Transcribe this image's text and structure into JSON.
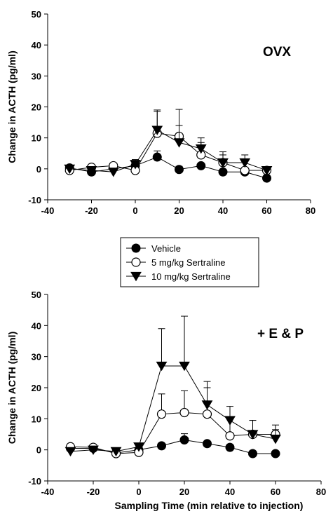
{
  "chart_data": [
    {
      "type": "line",
      "title": "OVX",
      "xlabel": "",
      "ylabel": "Change in ACTH (pg/ml)",
      "xlim": [
        -40,
        80
      ],
      "ylim": [
        -10,
        50
      ],
      "xticks": [
        "-40",
        "-20",
        "0",
        "20",
        "40",
        "60",
        "80"
      ],
      "yticks": [
        "-10",
        "0",
        "10",
        "20",
        "30",
        "40",
        "50"
      ],
      "series": [
        {
          "name": "Vehicle",
          "marker": "filled-circle",
          "x": [
            -30,
            -20,
            0,
            10,
            20,
            30,
            40,
            50,
            60
          ],
          "y": [
            0.3,
            -1,
            1,
            3.8,
            -0.2,
            1,
            -1,
            -1,
            -3
          ],
          "yerr": [
            0.5,
            0.5,
            1,
            2,
            1,
            0.5,
            0.5,
            0.5,
            0.3
          ]
        },
        {
          "name": "5 mg/kg Sertraline",
          "marker": "open-circle",
          "x": [
            -30,
            -20,
            -10,
            0,
            10,
            20,
            30,
            40,
            50,
            60
          ],
          "y": [
            -0.5,
            0.5,
            1,
            -0.5,
            11.5,
            10.5,
            4.5,
            2,
            -0.5,
            -0.5
          ],
          "yerr": [
            0.5,
            0.5,
            0.5,
            1,
            7,
            8.7,
            4,
            3.5,
            3,
            1
          ]
        },
        {
          "name": "10 mg/kg Sertraline",
          "marker": "filled-triangle",
          "x": [
            -30,
            -20,
            -10,
            0,
            10,
            20,
            30,
            40,
            50,
            60
          ],
          "y": [
            0,
            -0.5,
            -1,
            1.5,
            12.5,
            8.5,
            6.5,
            2,
            2,
            -0.5
          ],
          "yerr": [
            0.5,
            0.5,
            0.5,
            1.5,
            6.5,
            5.5,
            3.5,
            2.5,
            2.5,
            1
          ]
        }
      ]
    },
    {
      "type": "line",
      "title": "+ E & P",
      "xlabel": "Sampling Time (min relative to injection)",
      "ylabel": "Change in ACTH (pg/ml)",
      "xlim": [
        -40,
        80
      ],
      "ylim": [
        -10,
        50
      ],
      "xticks": [
        "-40",
        "-20",
        "0",
        "20",
        "40",
        "60",
        "80"
      ],
      "yticks": [
        "-10",
        "0",
        "10",
        "20",
        "30",
        "40",
        "50"
      ],
      "series": [
        {
          "name": "Vehicle",
          "marker": "filled-circle",
          "x": [
            -30,
            -20,
            -10,
            0,
            10,
            20,
            30,
            40,
            50,
            60
          ],
          "y": [
            0.5,
            0.5,
            -1,
            0,
            1.3,
            3.2,
            2,
            0.8,
            -1.2,
            -1.2
          ],
          "yerr": [
            0.5,
            0.5,
            0.5,
            0.5,
            0.5,
            2,
            0.5,
            0.5,
            0.5,
            0.5
          ]
        },
        {
          "name": "5 mg/kg Sertraline",
          "marker": "open-circle",
          "x": [
            -30,
            -20,
            -10,
            0,
            10,
            20,
            30,
            40,
            50,
            60
          ],
          "y": [
            1,
            0.8,
            -1.2,
            -0.8,
            11.5,
            12,
            11.5,
            4.5,
            5,
            5
          ],
          "yerr": [
            0.5,
            0.5,
            0.5,
            1,
            6.5,
            7,
            8.5,
            6,
            4.5,
            3
          ]
        },
        {
          "name": "10 mg/kg Sertraline",
          "marker": "filled-triangle",
          "x": [
            -30,
            -20,
            -10,
            0,
            10,
            20,
            30,
            40,
            50,
            60
          ],
          "y": [
            -0.5,
            0,
            -0.5,
            1,
            27,
            27,
            14.5,
            9.5,
            5,
            3.5
          ],
          "yerr": [
            0.5,
            0.5,
            0.5,
            1,
            12,
            16,
            7.5,
            4.5,
            4.5,
            3
          ]
        }
      ]
    }
  ],
  "legend": {
    "entries": [
      {
        "label": "Vehicle",
        "marker": "filled-circle"
      },
      {
        "label": "5 mg/kg Sertraline",
        "marker": "open-circle"
      },
      {
        "label": "10 mg/kg Sertraline",
        "marker": "filled-triangle"
      }
    ]
  }
}
